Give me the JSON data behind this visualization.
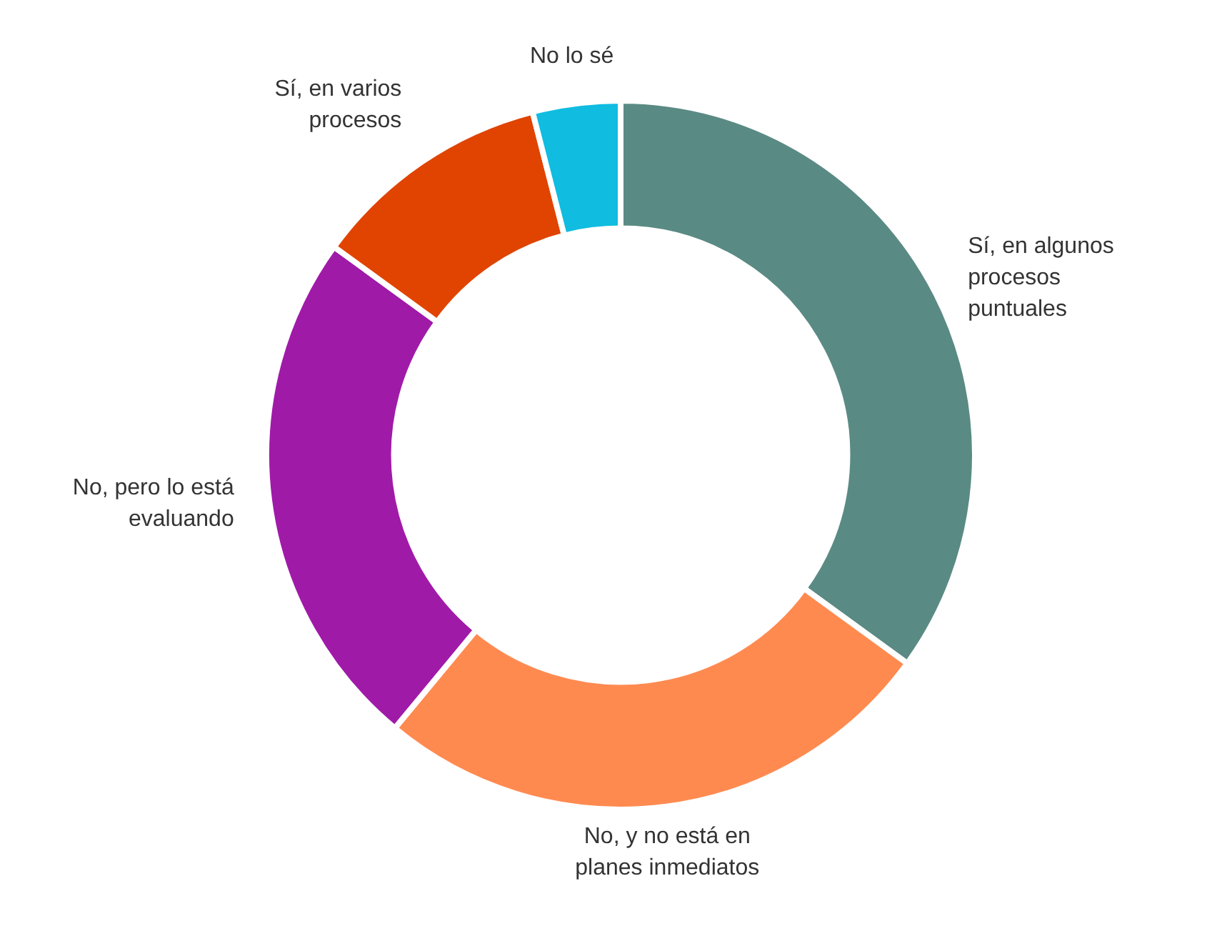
{
  "chart_data": {
    "type": "donut",
    "categories": [
      "Sí, en algunos procesos puntuales",
      "No, y no está en planes inmediatos",
      "No, pero lo está evaluando",
      "Sí, en varios procesos",
      "No lo sé"
    ],
    "values": [
      35,
      26,
      24,
      11,
      4
    ],
    "colors": [
      "#5a8a84",
      "#ff8a50",
      "#a01aa8",
      "#e04400",
      "#10bce0"
    ]
  }
}
